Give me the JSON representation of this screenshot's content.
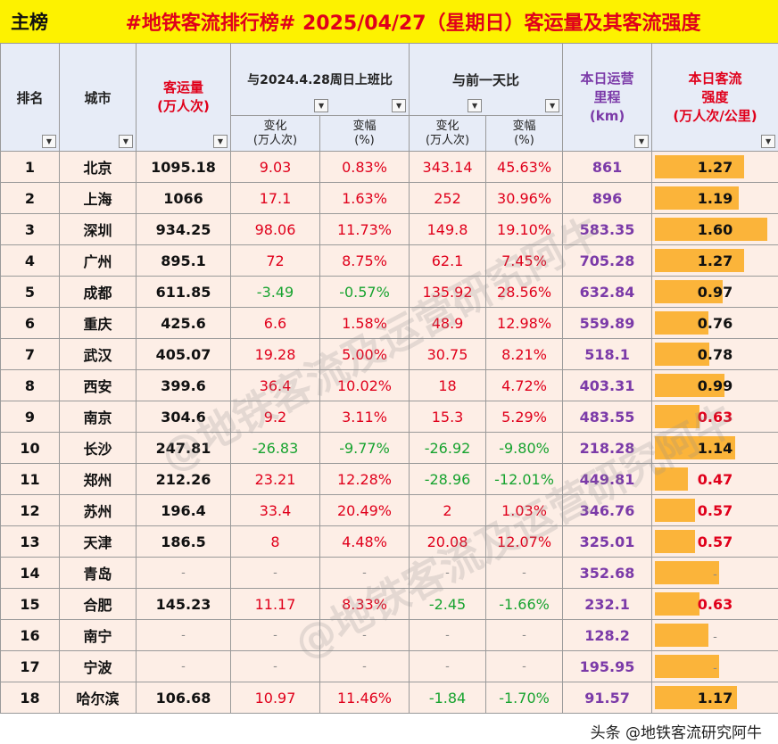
{
  "title": {
    "tag": "主榜",
    "main": "#地铁客流排行榜# 2025/04/27（星期日）客运量及其客流强度"
  },
  "header": {
    "rank": "排名",
    "city": "城市",
    "volume": "客运量\n(万人次)",
    "vs_last_year": "与2024.4.28周日上班比",
    "vs_prev_day": "与前一天比",
    "mileage": "本日运营\n里程\n(km)",
    "intensity": "本日客流\n强度\n(万人次/公里)",
    "change": "变化\n(万人次)",
    "change_pct": "变幅\n(%)",
    "filter_icon": "▼"
  },
  "rows": [
    {
      "rank": "1",
      "city": "北京",
      "volume": "1095.18",
      "ly_chg": "9.03",
      "ly_pct": "0.83%",
      "pd_chg": "343.14",
      "pd_pct": "45.63%",
      "mileage": "861",
      "intensity": "1.27"
    },
    {
      "rank": "2",
      "city": "上海",
      "volume": "1066",
      "ly_chg": "17.1",
      "ly_pct": "1.63%",
      "pd_chg": "252",
      "pd_pct": "30.96%",
      "mileage": "896",
      "intensity": "1.19"
    },
    {
      "rank": "3",
      "city": "深圳",
      "volume": "934.25",
      "ly_chg": "98.06",
      "ly_pct": "11.73%",
      "pd_chg": "149.8",
      "pd_pct": "19.10%",
      "mileage": "583.35",
      "intensity": "1.60"
    },
    {
      "rank": "4",
      "city": "广州",
      "volume": "895.1",
      "ly_chg": "72",
      "ly_pct": "8.75%",
      "pd_chg": "62.1",
      "pd_pct": "7.45%",
      "mileage": "705.28",
      "intensity": "1.27"
    },
    {
      "rank": "5",
      "city": "成都",
      "volume": "611.85",
      "ly_chg": "-3.49",
      "ly_pct": "-0.57%",
      "pd_chg": "135.92",
      "pd_pct": "28.56%",
      "mileage": "632.84",
      "intensity": "0.97"
    },
    {
      "rank": "6",
      "city": "重庆",
      "volume": "425.6",
      "ly_chg": "6.6",
      "ly_pct": "1.58%",
      "pd_chg": "48.9",
      "pd_pct": "12.98%",
      "mileage": "559.89",
      "intensity": "0.76"
    },
    {
      "rank": "7",
      "city": "武汉",
      "volume": "405.07",
      "ly_chg": "19.28",
      "ly_pct": "5.00%",
      "pd_chg": "30.75",
      "pd_pct": "8.21%",
      "mileage": "518.1",
      "intensity": "0.78"
    },
    {
      "rank": "8",
      "city": "西安",
      "volume": "399.6",
      "ly_chg": "36.4",
      "ly_pct": "10.02%",
      "pd_chg": "18",
      "pd_pct": "4.72%",
      "mileage": "403.31",
      "intensity": "0.99"
    },
    {
      "rank": "9",
      "city": "南京",
      "volume": "304.6",
      "ly_chg": "9.2",
      "ly_pct": "3.11%",
      "pd_chg": "15.3",
      "pd_pct": "5.29%",
      "mileage": "483.55",
      "intensity": "0.63"
    },
    {
      "rank": "10",
      "city": "长沙",
      "volume": "247.81",
      "ly_chg": "-26.83",
      "ly_pct": "-9.77%",
      "pd_chg": "-26.92",
      "pd_pct": "-9.80%",
      "mileage": "218.28",
      "intensity": "1.14"
    },
    {
      "rank": "11",
      "city": "郑州",
      "volume": "212.26",
      "ly_chg": "23.21",
      "ly_pct": "12.28%",
      "pd_chg": "-28.96",
      "pd_pct": "-12.01%",
      "mileage": "449.81",
      "intensity": "0.47"
    },
    {
      "rank": "12",
      "city": "苏州",
      "volume": "196.4",
      "ly_chg": "33.4",
      "ly_pct": "20.49%",
      "pd_chg": "2",
      "pd_pct": "1.03%",
      "mileage": "346.76",
      "intensity": "0.57"
    },
    {
      "rank": "13",
      "city": "天津",
      "volume": "186.5",
      "ly_chg": "8",
      "ly_pct": "4.48%",
      "pd_chg": "20.08",
      "pd_pct": "12.07%",
      "mileage": "325.01",
      "intensity": "0.57"
    },
    {
      "rank": "14",
      "city": "青岛",
      "volume": "-",
      "ly_chg": "-",
      "ly_pct": "-",
      "pd_chg": "-",
      "pd_pct": "-",
      "mileage": "352.68",
      "intensity": "-"
    },
    {
      "rank": "15",
      "city": "合肥",
      "volume": "145.23",
      "ly_chg": "11.17",
      "ly_pct": "8.33%",
      "pd_chg": "-2.45",
      "pd_pct": "-1.66%",
      "mileage": "232.1",
      "intensity": "0.63"
    },
    {
      "rank": "16",
      "city": "南宁",
      "volume": "-",
      "ly_chg": "-",
      "ly_pct": "-",
      "pd_chg": "-",
      "pd_pct": "-",
      "mileage": "128.2",
      "intensity": "-"
    },
    {
      "rank": "17",
      "city": "宁波",
      "volume": "-",
      "ly_chg": "-",
      "ly_pct": "-",
      "pd_chg": "-",
      "pd_pct": "-",
      "mileage": "195.95",
      "intensity": "-"
    },
    {
      "rank": "18",
      "city": "哈尔滨",
      "volume": "106.68",
      "ly_chg": "10.97",
      "ly_pct": "11.46%",
      "pd_chg": "-1.84",
      "pd_pct": "-1.70%",
      "mileage": "91.57",
      "intensity": "1.17"
    }
  ],
  "intensity_bar_max": 1.6,
  "colors": {
    "title_bg": "#fdf200",
    "title_text": "#e0001b",
    "row_bg": "#fdeee6",
    "bar": "#fbb43a",
    "positive": "#e0001b",
    "negative": "#17a32f",
    "mileage": "#7b3aa8"
  },
  "watermark": "@地铁客流及运营研究阿牛",
  "credit": "头条 @地铁客流研究阿牛"
}
